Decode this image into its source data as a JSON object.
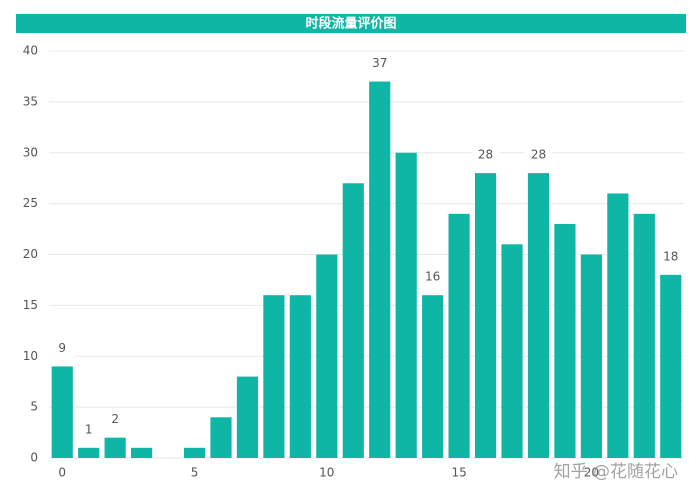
{
  "chart_data": {
    "type": "bar",
    "title": "时段流量评价图",
    "categories": [
      0,
      null,
      null,
      null,
      null,
      5,
      null,
      null,
      null,
      null,
      10,
      null,
      null,
      null,
      null,
      15,
      null,
      null,
      null,
      null,
      20,
      null,
      null,
      null
    ],
    "values": [
      9,
      1,
      2,
      1,
      0,
      1,
      4,
      8,
      16,
      16,
      20,
      27,
      37,
      30,
      16,
      24,
      28,
      21,
      28,
      23,
      20,
      26,
      24,
      18
    ],
    "value_labels": [
      "9",
      "1",
      "2",
      null,
      null,
      null,
      null,
      null,
      null,
      null,
      null,
      null,
      "37",
      null,
      "16",
      null,
      "28",
      null,
      "28",
      null,
      null,
      null,
      null,
      "18"
    ],
    "color": "#0fb5a5",
    "ylim": [
      0,
      40
    ],
    "yticks": [
      0,
      5,
      10,
      15,
      20,
      25,
      30,
      35,
      40
    ],
    "grid": true,
    "watermark": "知乎 @花随花心"
  }
}
